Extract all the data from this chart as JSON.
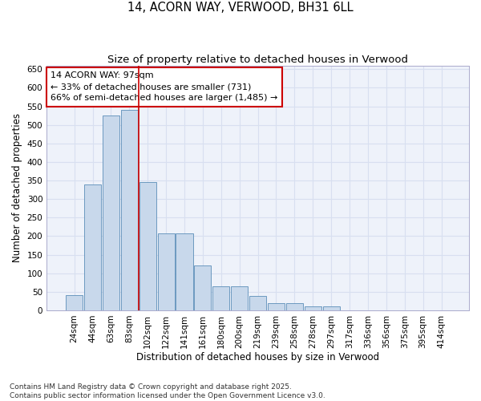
{
  "title": "14, ACORN WAY, VERWOOD, BH31 6LL",
  "subtitle": "Size of property relative to detached houses in Verwood",
  "xlabel": "Distribution of detached houses by size in Verwood",
  "ylabel": "Number of detached properties",
  "categories": [
    "24sqm",
    "44sqm",
    "63sqm",
    "83sqm",
    "102sqm",
    "122sqm",
    "141sqm",
    "161sqm",
    "180sqm",
    "200sqm",
    "219sqm",
    "239sqm",
    "258sqm",
    "278sqm",
    "297sqm",
    "317sqm",
    "336sqm",
    "356sqm",
    "375sqm",
    "395sqm",
    "414sqm"
  ],
  "values": [
    42,
    340,
    525,
    540,
    345,
    207,
    207,
    120,
    65,
    65,
    38,
    20,
    20,
    10,
    10,
    0,
    0,
    0,
    0,
    0,
    0
  ],
  "bar_color": "#c8d8eb",
  "bar_edge_color": "#5b8db8",
  "background_color": "#eef2fa",
  "grid_color": "#d8dff0",
  "annotation_text": "14 ACORN WAY: 97sqm\n← 33% of detached houses are smaller (731)\n66% of semi-detached houses are larger (1,485) →",
  "annotation_box_color": "#ffffff",
  "annotation_box_edge_color": "#cc0000",
  "vline_color": "#cc0000",
  "vline_x_idx": 4,
  "ylim": [
    0,
    660
  ],
  "yticks": [
    0,
    50,
    100,
    150,
    200,
    250,
    300,
    350,
    400,
    450,
    500,
    550,
    600,
    650
  ],
  "footer_text": "Contains HM Land Registry data © Crown copyright and database right 2025.\nContains public sector information licensed under the Open Government Licence v3.0.",
  "title_fontsize": 10.5,
  "subtitle_fontsize": 9.5,
  "axis_label_fontsize": 8.5,
  "tick_fontsize": 7.5,
  "annotation_fontsize": 8,
  "footer_fontsize": 6.5
}
